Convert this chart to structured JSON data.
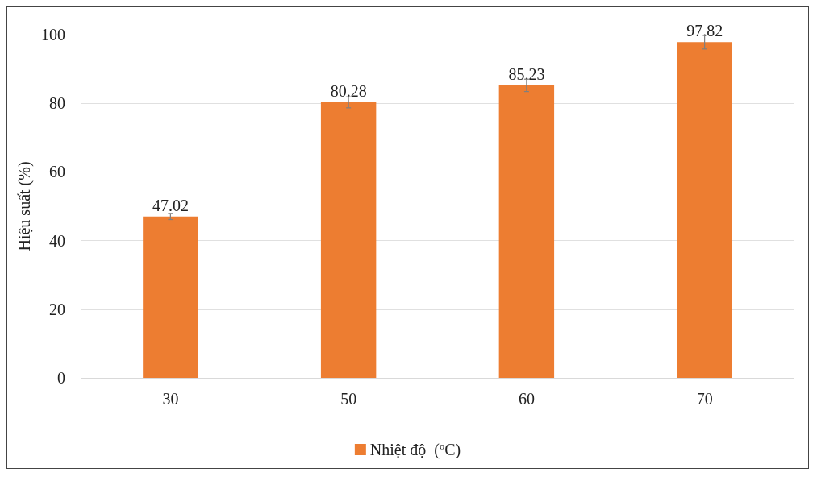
{
  "chart_data": {
    "type": "bar",
    "ylabel": "Hiệu suất (%)",
    "categories": [
      "30",
      "50",
      "60",
      "70"
    ],
    "series": [
      {
        "name": "Nhiệt độ  (ºC)",
        "color": "#ed7d31",
        "values": [
          47.02,
          80.28,
          85.23,
          97.82
        ],
        "errors": [
          0.9,
          1.6,
          1.8,
          2
        ]
      }
    ],
    "ylim": [
      0,
      100
    ],
    "yticks": [
      0,
      20,
      40,
      60,
      80,
      100
    ],
    "grid": "y",
    "legend": "bottom",
    "data_labels": true
  }
}
